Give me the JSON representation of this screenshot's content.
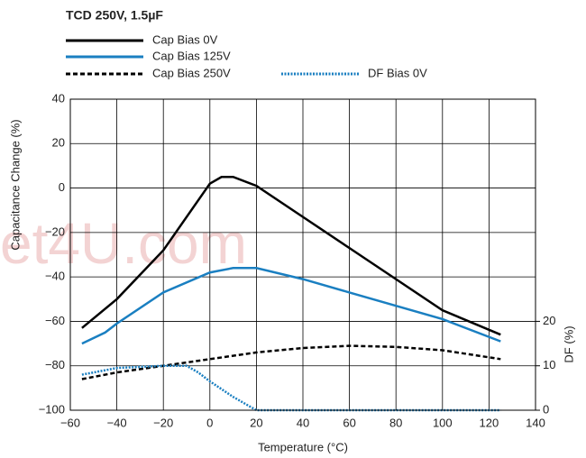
{
  "chart_data": {
    "type": "line",
    "title": "TCD 250V, 1.5µF",
    "watermark": "et4U.com",
    "xlabel": "Temperature (°C)",
    "ylabel": "Capacitance Change (%)",
    "y2label": "DF (%)",
    "xlim": [
      -60,
      140
    ],
    "xticks": [
      {
        "value": -60,
        "label": "−60"
      },
      {
        "value": -40,
        "label": "−40"
      },
      {
        "value": -20,
        "label": "−20"
      },
      0,
      20,
      40,
      60,
      80,
      100,
      120,
      140
    ],
    "ylim": [
      -100,
      40
    ],
    "yticks": [
      {
        "value": -100,
        "label": "−100"
      },
      {
        "value": -80,
        "label": "−80"
      },
      {
        "value": -60,
        "label": "−60"
      },
      {
        "value": -40,
        "label": "−40"
      },
      {
        "value": -20,
        "label": "−20"
      },
      0,
      20,
      40
    ],
    "y2lim": [
      0,
      70
    ],
    "y2ticks": [
      0,
      10,
      20
    ],
    "grid": true,
    "series": [
      {
        "name": "Cap Bias 0V",
        "color": "#000000",
        "dash": "solid",
        "x": [
          -55,
          -40,
          -20,
          0,
          5,
          10,
          20,
          40,
          60,
          80,
          100,
          125
        ],
        "values": [
          -63,
          -50,
          -28,
          2,
          5,
          5,
          1,
          -13,
          -27,
          -41,
          -55,
          -66
        ]
      },
      {
        "name": "Cap Bias 125V",
        "color": "#1a7fc1",
        "dash": "solid",
        "x": [
          -55,
          -45,
          -40,
          -20,
          0,
          10,
          20,
          40,
          60,
          80,
          100,
          125
        ],
        "values": [
          -70,
          -65,
          -61,
          -47,
          -38,
          -36,
          -36,
          -41,
          -47,
          -53,
          -59,
          -69
        ]
      },
      {
        "name": "Cap Bias 250V",
        "color": "#000000",
        "dash": "dashed",
        "x": [
          -55,
          -40,
          -20,
          0,
          20,
          40,
          60,
          80,
          100,
          125
        ],
        "values": [
          -86,
          -83,
          -80,
          -77,
          -74,
          -72,
          -71,
          -71.5,
          -73,
          -77
        ]
      },
      {
        "name": "DF Bias 0V",
        "color": "#1a7fc1",
        "dash": "dotted",
        "axis": "y2",
        "x": [
          -55,
          -40,
          -20,
          -10,
          -5,
          0,
          10,
          20,
          125
        ],
        "values": [
          8,
          9.5,
          10,
          10,
          8.5,
          6.5,
          3,
          0,
          0
        ]
      }
    ]
  }
}
